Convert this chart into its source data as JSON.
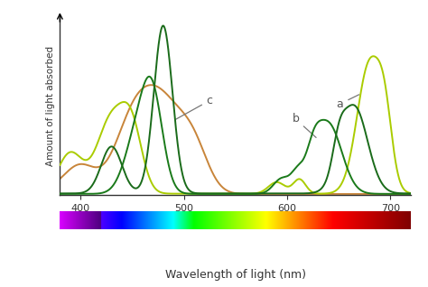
{
  "xlabel": "Wavelength of light (nm)",
  "ylabel": "Amount of light absorbed",
  "xlim": [
    380,
    720
  ],
  "ylim": [
    0,
    1.05
  ],
  "background_color": "#ffffff",
  "label_a": "a",
  "label_b": "b",
  "label_c": "c",
  "color_a": "#aacc00",
  "color_b": "#1a7a1a",
  "color_c": "#c8853a",
  "color_chla": "#1a6b1a",
  "tick_color": "#333333",
  "axis_color": "#333333",
  "ann_color": "#777777",
  "ann_text_color": "#555555"
}
